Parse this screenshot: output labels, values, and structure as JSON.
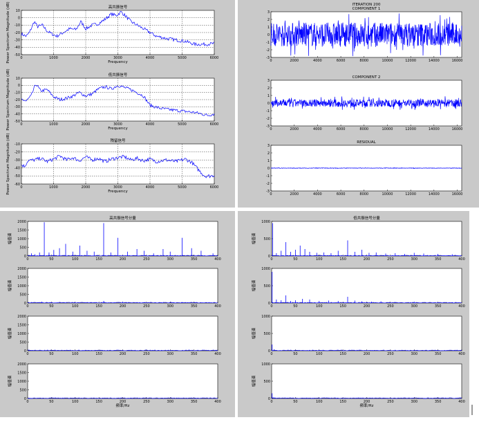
{
  "colors": {
    "series": "#0000ff",
    "panel": "#c9c9c9",
    "background": "#ffffff"
  },
  "chart_data": [
    {
      "type": "line",
      "title": "高共振信号",
      "xlabel": "Frequency",
      "ylabel": "Power Spectrum Magnitude (dB)",
      "xlim": [
        0,
        6000
      ],
      "ylim": [
        -50,
        10
      ],
      "xticks": [
        "0",
        "1000",
        "2000",
        "3000",
        "4000",
        "5000",
        "6000"
      ],
      "yticks": [
        "10",
        "0",
        "-10",
        "-20",
        "-30",
        "-40",
        "-50"
      ],
      "grid": true,
      "x": [
        0,
        150,
        250,
        400,
        500,
        650,
        800,
        950,
        1100,
        1300,
        1500,
        1700,
        1850,
        2000,
        2200,
        2400,
        2600,
        2800,
        2950,
        3100,
        3250,
        3400,
        3600,
        3800,
        4000,
        4200,
        4500,
        4800,
        5100,
        5400,
        5700,
        6000
      ],
      "values": [
        -22,
        -25,
        -20,
        -5,
        -12,
        -10,
        -18,
        -22,
        -25,
        -20,
        -15,
        -16,
        -5,
        -15,
        -10,
        -8,
        -2,
        5,
        3,
        8,
        2,
        -5,
        -10,
        -15,
        -20,
        -25,
        -28,
        -30,
        -32,
        -36,
        -36,
        -35
      ]
    },
    {
      "type": "line",
      "title": "低共振信号",
      "xlabel": "Frequency",
      "ylabel": "Power Spectrum Magnitude (dB)",
      "xlim": [
        0,
        6000
      ],
      "ylim": [
        -50,
        10
      ],
      "xticks": [
        "0",
        "1000",
        "2000",
        "3000",
        "4000",
        "5000",
        "6000"
      ],
      "yticks": [
        "10",
        "0",
        "-10",
        "-20",
        "-30",
        "-40",
        "-50"
      ],
      "grid": true,
      "x": [
        0,
        150,
        300,
        450,
        600,
        800,
        1000,
        1200,
        1400,
        1600,
        1800,
        2000,
        2200,
        2400,
        2600,
        2800,
        3000,
        3200,
        3400,
        3600,
        3800,
        4000,
        4300,
        4600,
        5000,
        5400,
        5800,
        6000
      ],
      "values": [
        -20,
        -22,
        -15,
        2,
        -8,
        -6,
        -16,
        -20,
        -18,
        -15,
        -10,
        -15,
        -12,
        -5,
        -2,
        -5,
        0,
        -3,
        -6,
        -10,
        -15,
        -28,
        -32,
        -34,
        -36,
        -38,
        -42,
        -40
      ]
    },
    {
      "type": "line",
      "title": "残留信号",
      "xlabel": "Frequency",
      "ylabel": "Power Spectrum Magnitude (dB)",
      "xlim": [
        0,
        6000
      ],
      "ylim": [
        -60,
        -10
      ],
      "xticks": [
        "0",
        "1000",
        "2000",
        "3000",
        "4000",
        "5000",
        "6000"
      ],
      "yticks": [
        "-10",
        "-20",
        "-30",
        "-40",
        "-50",
        "-60"
      ],
      "grid": true,
      "x": [
        0,
        100,
        200,
        400,
        600,
        800,
        1000,
        1200,
        1400,
        1600,
        1800,
        2000,
        2200,
        2400,
        2600,
        2800,
        3000,
        3200,
        3400,
        3600,
        3800,
        4000,
        4200,
        4500,
        4800,
        5100,
        5300,
        5500,
        5700,
        5900,
        6000
      ],
      "values": [
        -36,
        -38,
        -31,
        -30,
        -28,
        -32,
        -29,
        -25,
        -30,
        -27,
        -31,
        -26,
        -30,
        -28,
        -32,
        -29,
        -27,
        -26,
        -30,
        -28,
        -31,
        -29,
        -32,
        -30,
        -32,
        -29,
        -33,
        -42,
        -50,
        -50,
        -49
      ]
    },
    {
      "type": "line",
      "title": "ITERATION 200\nCOMPONENT 1",
      "xlim": [
        0,
        16384
      ],
      "ylim": [
        -3,
        3
      ],
      "amplitude": 1.6,
      "xticks": [
        "0",
        "2000",
        "4000",
        "6000",
        "8000",
        "10000",
        "12000",
        "14000",
        "16000"
      ],
      "yticks": [
        "3",
        "2",
        "1",
        "0",
        "-1",
        "-2",
        "-3"
      ]
    },
    {
      "type": "line",
      "title": "COMPONENT 2",
      "xlim": [
        0,
        16384
      ],
      "ylim": [
        -3,
        3
      ],
      "amplitude": 0.5,
      "xticks": [
        "0",
        "2000",
        "4000",
        "6000",
        "8000",
        "10000",
        "12000",
        "14000",
        "16000"
      ],
      "yticks": [
        "3",
        "2",
        "1",
        "0",
        "-1",
        "-2",
        "-3"
      ]
    },
    {
      "type": "line",
      "title": "RESIDUAL",
      "xlim": [
        0,
        16384
      ],
      "ylim": [
        -3,
        3
      ],
      "amplitude": 0.03,
      "xticks": [
        "0",
        "2000",
        "4000",
        "6000",
        "8000",
        "10000",
        "12000",
        "14000",
        "16000"
      ],
      "yticks": [
        "3",
        "2",
        "1",
        "0",
        "-1",
        "-2",
        "-3"
      ]
    },
    {
      "type": "bar",
      "title": "高共振信号分量",
      "ylabel": "幅值谱",
      "xlim": [
        0,
        400
      ],
      "ylim": [
        0,
        2000
      ],
      "xticks": [
        "0",
        "50",
        "100",
        "150",
        "200",
        "250",
        "300",
        "350",
        "400"
      ],
      "yticks": [
        "2000",
        "1500",
        "1000",
        "500",
        "0"
      ],
      "x": [
        8,
        15,
        25,
        35,
        45,
        55,
        67,
        80,
        95,
        110,
        125,
        140,
        160,
        175,
        190,
        210,
        230,
        245,
        265,
        285,
        300,
        325,
        345,
        365,
        390
      ],
      "values": [
        150,
        100,
        200,
        1950,
        200,
        350,
        450,
        700,
        250,
        600,
        300,
        250,
        1900,
        200,
        1050,
        250,
        400,
        300,
        150,
        400,
        250,
        1050,
        450,
        300,
        150
      ]
    },
    {
      "type": "bar",
      "ylabel": "幅值谱",
      "xlim": [
        0,
        400
      ],
      "ylim": [
        0,
        2000
      ],
      "xticks": [
        "0",
        "50",
        "100",
        "150",
        "200",
        "250",
        "300",
        "350",
        "400"
      ],
      "yticks": [
        "2000",
        "1500",
        "1000",
        "500",
        "0"
      ],
      "x": [
        30,
        160,
        200,
        245,
        325
      ],
      "values": [
        80,
        120,
        60,
        40,
        50
      ]
    },
    {
      "type": "bar",
      "ylabel": "幅值谱",
      "xlim": [
        0,
        400
      ],
      "ylim": [
        0,
        2000
      ],
      "xticks": [
        "0",
        "50",
        "100",
        "150",
        "200",
        "250",
        "300",
        "350",
        "400"
      ],
      "yticks": [
        "2000",
        "1500",
        "1000",
        "500",
        "0"
      ],
      "x": [
        3,
        30,
        160
      ],
      "values": [
        60,
        25,
        20
      ]
    },
    {
      "type": "bar",
      "ylabel": "幅值谱",
      "xlabel": "频率/Hz",
      "xlim": [
        0,
        400
      ],
      "ylim": [
        0,
        2000
      ],
      "xticks": [
        "0",
        "50",
        "100",
        "150",
        "200",
        "250",
        "300",
        "350",
        "400"
      ],
      "yticks": [
        "2000",
        "1500",
        "1000",
        "500",
        "0"
      ],
      "x": [
        3,
        30,
        160
      ],
      "values": [
        40,
        20,
        15
      ]
    },
    {
      "type": "bar",
      "title": "低共振信号分量",
      "ylabel": "幅值谱",
      "xlim": [
        0,
        400
      ],
      "ylim": [
        0,
        1000
      ],
      "xticks": [
        "0",
        "50",
        "100",
        "150",
        "200",
        "250",
        "300",
        "350",
        "400"
      ],
      "yticks": [
        "1000",
        "500",
        "0"
      ],
      "x": [
        2,
        10,
        20,
        30,
        40,
        50,
        60,
        70,
        80,
        95,
        110,
        125,
        140,
        160,
        175,
        190,
        205,
        220,
        240,
        260,
        280,
        300,
        320,
        350,
        380
      ],
      "values": [
        950,
        80,
        150,
        400,
        120,
        180,
        300,
        200,
        120,
        90,
        100,
        80,
        150,
        450,
        120,
        180,
        90,
        100,
        70,
        80,
        60,
        90,
        70,
        60,
        50
      ]
    },
    {
      "type": "bar",
      "ylabel": "幅值谱",
      "xlim": [
        0,
        400
      ],
      "ylim": [
        0,
        1000
      ],
      "xticks": [
        "0",
        "50",
        "100",
        "150",
        "200",
        "250",
        "300",
        "350",
        "400"
      ],
      "yticks": [
        "1000",
        "500",
        "0"
      ],
      "x": [
        1,
        10,
        20,
        30,
        40,
        50,
        65,
        80,
        100,
        120,
        140,
        160,
        175,
        190,
        210,
        230,
        260,
        300,
        340,
        380
      ],
      "values": [
        900,
        100,
        80,
        220,
        60,
        80,
        120,
        100,
        60,
        70,
        60,
        180,
        70,
        50,
        40,
        50,
        30,
        30,
        20,
        20
      ]
    },
    {
      "type": "bar",
      "ylabel": "幅值谱",
      "xlim": [
        0,
        400
      ],
      "ylim": [
        0,
        1000
      ],
      "xticks": [
        "0",
        "50",
        "100",
        "150",
        "200",
        "250",
        "300",
        "350",
        "400"
      ],
      "yticks": [
        "1000",
        "500",
        "0"
      ],
      "x": [
        1,
        5,
        30,
        160
      ],
      "values": [
        180,
        40,
        15,
        10
      ]
    },
    {
      "type": "bar",
      "ylabel": "幅值谱",
      "xlabel": "频率/Hz",
      "xlim": [
        0,
        400
      ],
      "ylim": [
        0,
        1000
      ],
      "xticks": [
        "0",
        "50",
        "100",
        "150",
        "200",
        "250",
        "300",
        "350",
        "400"
      ],
      "yticks": [
        "1000",
        "500",
        "0"
      ],
      "x": [
        1,
        5,
        30,
        160
      ],
      "values": [
        150,
        30,
        10,
        8
      ]
    }
  ]
}
